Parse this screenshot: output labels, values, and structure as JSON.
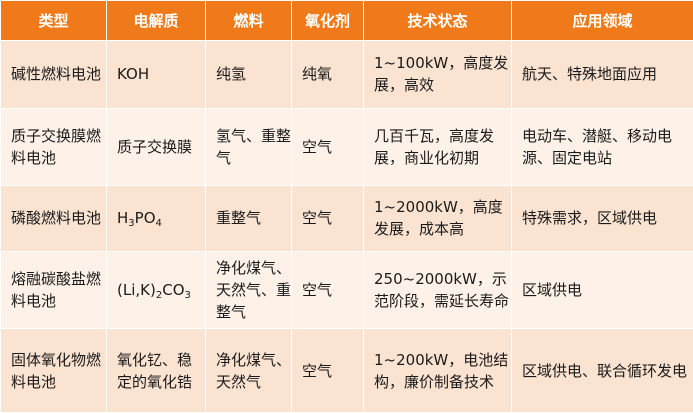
{
  "header": {
    "type": "类型",
    "electrolyte": "电解质",
    "fuel": "燃料",
    "oxidant": "氧化剂",
    "tech_status": "技术状态",
    "application": "应用领域"
  },
  "rows": [
    {
      "type": "碱性燃料电池",
      "electrolyte": "KOH",
      "fuel": "纯氢",
      "oxidant": "纯氧",
      "tech_status": "1~100kW，高度发展，高效",
      "application": "航天、特殊地面应用"
    },
    {
      "type": "质子交换膜燃料电池",
      "electrolyte": "质子交换膜",
      "fuel": "氢气、重整气",
      "oxidant": "空气",
      "tech_status": "几百千瓦，高度发展，商业化初期",
      "application": "电动车、潜艇、移动电源、固定电站"
    },
    {
      "type": "磷酸燃料电池",
      "electrolyte_main": "H",
      "electrolyte_sub1": "3",
      "electrolyte_mid": "PO",
      "electrolyte_sub2": "4",
      "fuel": "重整气",
      "oxidant": "空气",
      "tech_status": "1~2000kW，高度发展，成本高",
      "application": "特殊需求，区域供电"
    },
    {
      "type": "熔融碳酸盐燃料电池",
      "electrolyte_main": "(Li,K)",
      "electrolyte_sub1": "2",
      "electrolyte_mid": "CO",
      "electrolyte_sub2": "3",
      "fuel": "净化煤气、天然气、重整气",
      "oxidant": "空气",
      "tech_status": "250~2000kW，示范阶段，需延长寿命",
      "application": "区域供电"
    },
    {
      "type": "固体氧化物燃料电池",
      "electrolyte": "氧化钇、稳定的氧化锆",
      "fuel": "净化煤气、天然气",
      "oxidant": "空气",
      "tech_status": "1~200kW，电池结构，廉价制备技术",
      "application": "区域供电、联合循环发电"
    }
  ]
}
